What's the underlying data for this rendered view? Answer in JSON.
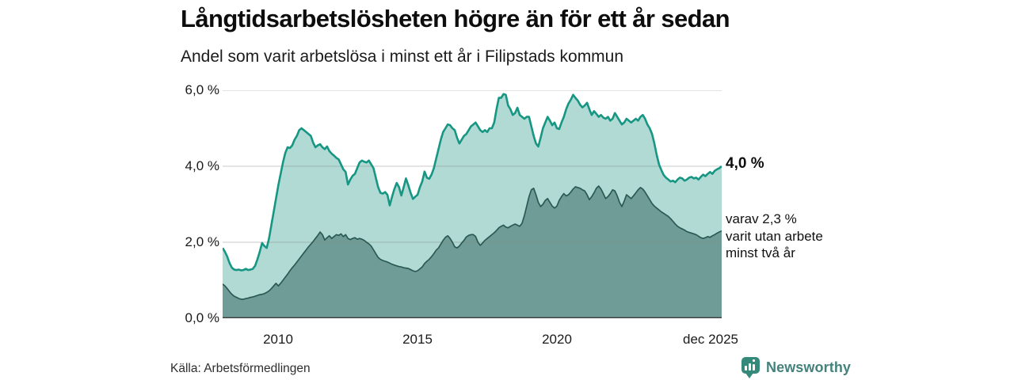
{
  "header": {
    "title": "Långtidsarbetslösheten högre än för ett år sedan",
    "subtitle": "Andel som varit arbetslösa i minst ett år i Filipstads kommun"
  },
  "axis": {
    "y_ticks": [
      "6,0 %",
      "4,0 %",
      "2,0 %",
      "0,0 %"
    ],
    "x_ticks": [
      "2010",
      "2015",
      "2020",
      "dec 2025"
    ]
  },
  "end_labels": {
    "total_value": "4,0 %",
    "annotation_lines": [
      "varav 2,3 %",
      "varit utan arbete",
      "minst två år"
    ]
  },
  "footer": {
    "source": "Källa: Arbetsförmedlingen",
    "brand": "Newsworthy"
  },
  "colors": {
    "series1_line": "#169683",
    "series1_fill": "#b0dad3",
    "series2_line": "#2b5a54",
    "series2_fill": "#6f9c96",
    "gridline": "#8c8c8c",
    "baseline": "#3e3e3e",
    "brand_teal": "#35897b"
  },
  "chart_data": {
    "type": "area",
    "title": "Långtidsarbetslösheten högre än för ett år sedan",
    "subtitle": "Andel som varit arbetslösa i minst ett år i Filipstads kommun",
    "unit": "%",
    "x_start": "2008-01",
    "x_end": "2025-12",
    "x_frequency": "monthly",
    "ylim": [
      0,
      6
    ],
    "grid_values": [
      2,
      4,
      6
    ],
    "x_tick_years": [
      2010,
      2015,
      2020,
      2025.92
    ],
    "legend_position": "end-of-line labels (right)",
    "end_values": {
      "minst_ett_ar": 4.0,
      "minst_tva_ar": 2.3
    },
    "series": [
      {
        "name": "Andel arbetslösa minst ett år",
        "line_color": "#169683",
        "fill_color": "#b0dad3",
        "values": [
          1.85,
          1.75,
          1.62,
          1.45,
          1.33,
          1.28,
          1.27,
          1.28,
          1.26,
          1.27,
          1.3,
          1.27,
          1.28,
          1.3,
          1.38,
          1.55,
          1.75,
          1.98,
          1.9,
          1.85,
          2.1,
          2.45,
          2.8,
          3.15,
          3.5,
          3.8,
          4.1,
          4.35,
          4.5,
          4.48,
          4.55,
          4.7,
          4.8,
          4.95,
          5.0,
          4.95,
          4.9,
          4.85,
          4.8,
          4.62,
          4.5,
          4.55,
          4.58,
          4.5,
          4.45,
          4.52,
          4.4,
          4.33,
          4.28,
          4.22,
          4.18,
          4.05,
          3.92,
          3.85,
          3.52,
          3.65,
          3.75,
          3.8,
          3.95,
          4.1,
          4.15,
          4.12,
          4.1,
          4.15,
          4.05,
          3.95,
          3.7,
          3.45,
          3.3,
          3.28,
          3.32,
          3.25,
          2.97,
          3.2,
          3.4,
          3.56,
          3.45,
          3.23,
          3.45,
          3.68,
          3.5,
          3.3,
          3.14,
          3.2,
          3.25,
          3.45,
          3.6,
          3.86,
          3.7,
          3.67,
          3.78,
          3.95,
          4.2,
          4.45,
          4.7,
          4.9,
          5.0,
          5.1,
          5.08,
          5.0,
          4.95,
          4.75,
          4.6,
          4.7,
          4.8,
          4.85,
          4.95,
          5.05,
          5.1,
          5.15,
          5.05,
          4.95,
          4.9,
          4.95,
          4.9,
          5.0,
          5.0,
          5.15,
          5.5,
          5.8,
          5.8,
          5.9,
          5.88,
          5.6,
          5.5,
          5.35,
          5.4,
          5.54,
          5.35,
          5.3,
          5.25,
          5.3,
          5.3,
          5.05,
          4.8,
          4.6,
          4.52,
          4.75,
          5.0,
          5.15,
          5.3,
          5.2,
          5.08,
          5.15,
          5.0,
          4.98,
          5.15,
          5.3,
          5.5,
          5.65,
          5.75,
          5.88,
          5.8,
          5.73,
          5.62,
          5.55,
          5.6,
          5.67,
          5.5,
          5.35,
          5.45,
          5.38,
          5.3,
          5.35,
          5.28,
          5.25,
          5.3,
          5.2,
          5.25,
          5.4,
          5.3,
          5.2,
          5.1,
          5.15,
          5.25,
          5.2,
          5.15,
          5.2,
          5.25,
          5.2,
          5.3,
          5.35,
          5.25,
          5.1,
          5.0,
          4.85,
          4.6,
          4.3,
          4.05,
          3.9,
          3.77,
          3.7,
          3.65,
          3.6,
          3.62,
          3.58,
          3.65,
          3.7,
          3.68,
          3.62,
          3.65,
          3.7,
          3.72,
          3.68,
          3.7,
          3.65,
          3.72,
          3.78,
          3.74,
          3.8,
          3.85,
          3.8,
          3.88,
          3.92,
          3.95,
          4.0
        ]
      },
      {
        "name": "varav utan arbete minst två år",
        "line_color": "#2b5a54",
        "fill_color": "#6f9c96",
        "values": [
          0.9,
          0.85,
          0.78,
          0.7,
          0.63,
          0.58,
          0.55,
          0.52,
          0.5,
          0.5,
          0.52,
          0.53,
          0.55,
          0.56,
          0.58,
          0.6,
          0.62,
          0.63,
          0.65,
          0.68,
          0.72,
          0.78,
          0.85,
          0.92,
          0.85,
          0.92,
          1.0,
          1.08,
          1.16,
          1.25,
          1.33,
          1.4,
          1.48,
          1.56,
          1.64,
          1.72,
          1.8,
          1.88,
          1.95,
          2.02,
          2.1,
          2.18,
          2.27,
          2.2,
          2.06,
          2.12,
          2.17,
          2.1,
          2.15,
          2.2,
          2.18,
          2.22,
          2.15,
          2.2,
          2.1,
          2.07,
          2.1,
          2.12,
          2.08,
          2.1,
          2.08,
          2.05,
          2.0,
          1.96,
          1.9,
          1.8,
          1.7,
          1.6,
          1.55,
          1.52,
          1.5,
          1.48,
          1.45,
          1.42,
          1.4,
          1.38,
          1.36,
          1.35,
          1.33,
          1.32,
          1.31,
          1.28,
          1.25,
          1.23,
          1.25,
          1.3,
          1.35,
          1.44,
          1.5,
          1.55,
          1.62,
          1.7,
          1.79,
          1.85,
          1.95,
          2.05,
          2.13,
          2.17,
          2.1,
          2.0,
          1.88,
          1.85,
          1.9,
          1.98,
          2.05,
          2.14,
          2.18,
          2.2,
          2.2,
          2.15,
          2.0,
          1.92,
          1.98,
          2.05,
          2.1,
          2.15,
          2.2,
          2.25,
          2.31,
          2.38,
          2.42,
          2.45,
          2.4,
          2.38,
          2.42,
          2.45,
          2.48,
          2.45,
          2.42,
          2.5,
          2.7,
          2.95,
          3.2,
          3.38,
          3.42,
          3.25,
          3.05,
          2.94,
          3.0,
          3.1,
          3.15,
          3.05,
          2.95,
          2.9,
          2.95,
          3.1,
          3.2,
          3.28,
          3.22,
          3.25,
          3.32,
          3.4,
          3.46,
          3.44,
          3.42,
          3.38,
          3.35,
          3.25,
          3.12,
          3.2,
          3.3,
          3.42,
          3.48,
          3.4,
          3.28,
          3.15,
          3.2,
          3.28,
          3.38,
          3.35,
          3.22,
          3.05,
          2.94,
          3.08,
          3.25,
          3.2,
          3.15,
          3.22,
          3.3,
          3.38,
          3.44,
          3.4,
          3.32,
          3.22,
          3.12,
          3.02,
          2.95,
          2.9,
          2.85,
          2.8,
          2.76,
          2.72,
          2.68,
          2.62,
          2.55,
          2.48,
          2.42,
          2.38,
          2.35,
          2.32,
          2.28,
          2.26,
          2.24,
          2.22,
          2.2,
          2.16,
          2.12,
          2.1,
          2.12,
          2.15,
          2.13,
          2.17,
          2.2,
          2.24,
          2.27,
          2.3
        ]
      }
    ]
  }
}
